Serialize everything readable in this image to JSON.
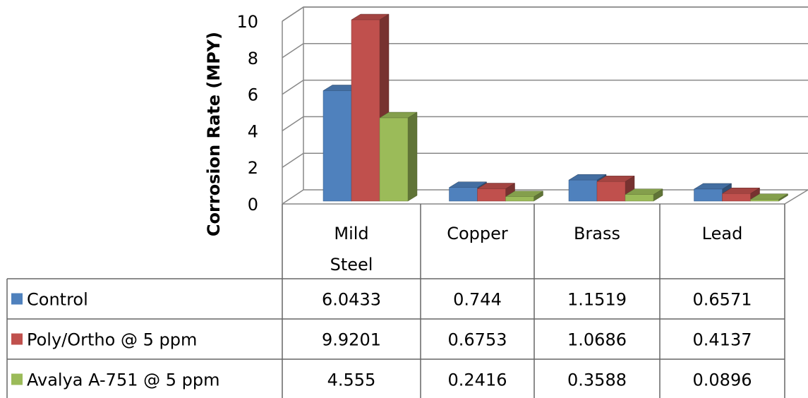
{
  "chart_data": {
    "type": "bar",
    "subtype": "3d-clustered-with-data-table",
    "ylabel": "Corrosion Rate (MPY)",
    "ylim": [
      0,
      10
    ],
    "yticks": [
      0,
      2,
      4,
      6,
      8,
      10
    ],
    "grid": true,
    "categories": [
      "Mild Steel",
      "Copper",
      "Brass",
      "Lead"
    ],
    "category_lines": [
      [
        "Mild",
        "Steel"
      ],
      [
        "Copper"
      ],
      [
        "Brass"
      ],
      [
        "Lead"
      ]
    ],
    "series": [
      {
        "name": "Control",
        "color": "#4F81BD",
        "values": [
          6.0433,
          0.744,
          1.1519,
          0.6571
        ],
        "labels": [
          "6.0433",
          "0.744",
          "1.1519",
          "0.6571"
        ]
      },
      {
        "name": "Poly/Ortho @ 5 ppm",
        "color": "#C0504D",
        "values": [
          9.9201,
          0.6753,
          1.0686,
          0.4137
        ],
        "labels": [
          "9.9201",
          "0.6753",
          "1.0686",
          "0.4137"
        ]
      },
      {
        "name": "Avalya A-751 @ 5 ppm",
        "color": "#9BBB59",
        "values": [
          4.555,
          0.2416,
          0.3588,
          0.0896
        ],
        "labels": [
          "4.555",
          "0.2416",
          "0.3588",
          "0.0896"
        ]
      }
    ]
  }
}
